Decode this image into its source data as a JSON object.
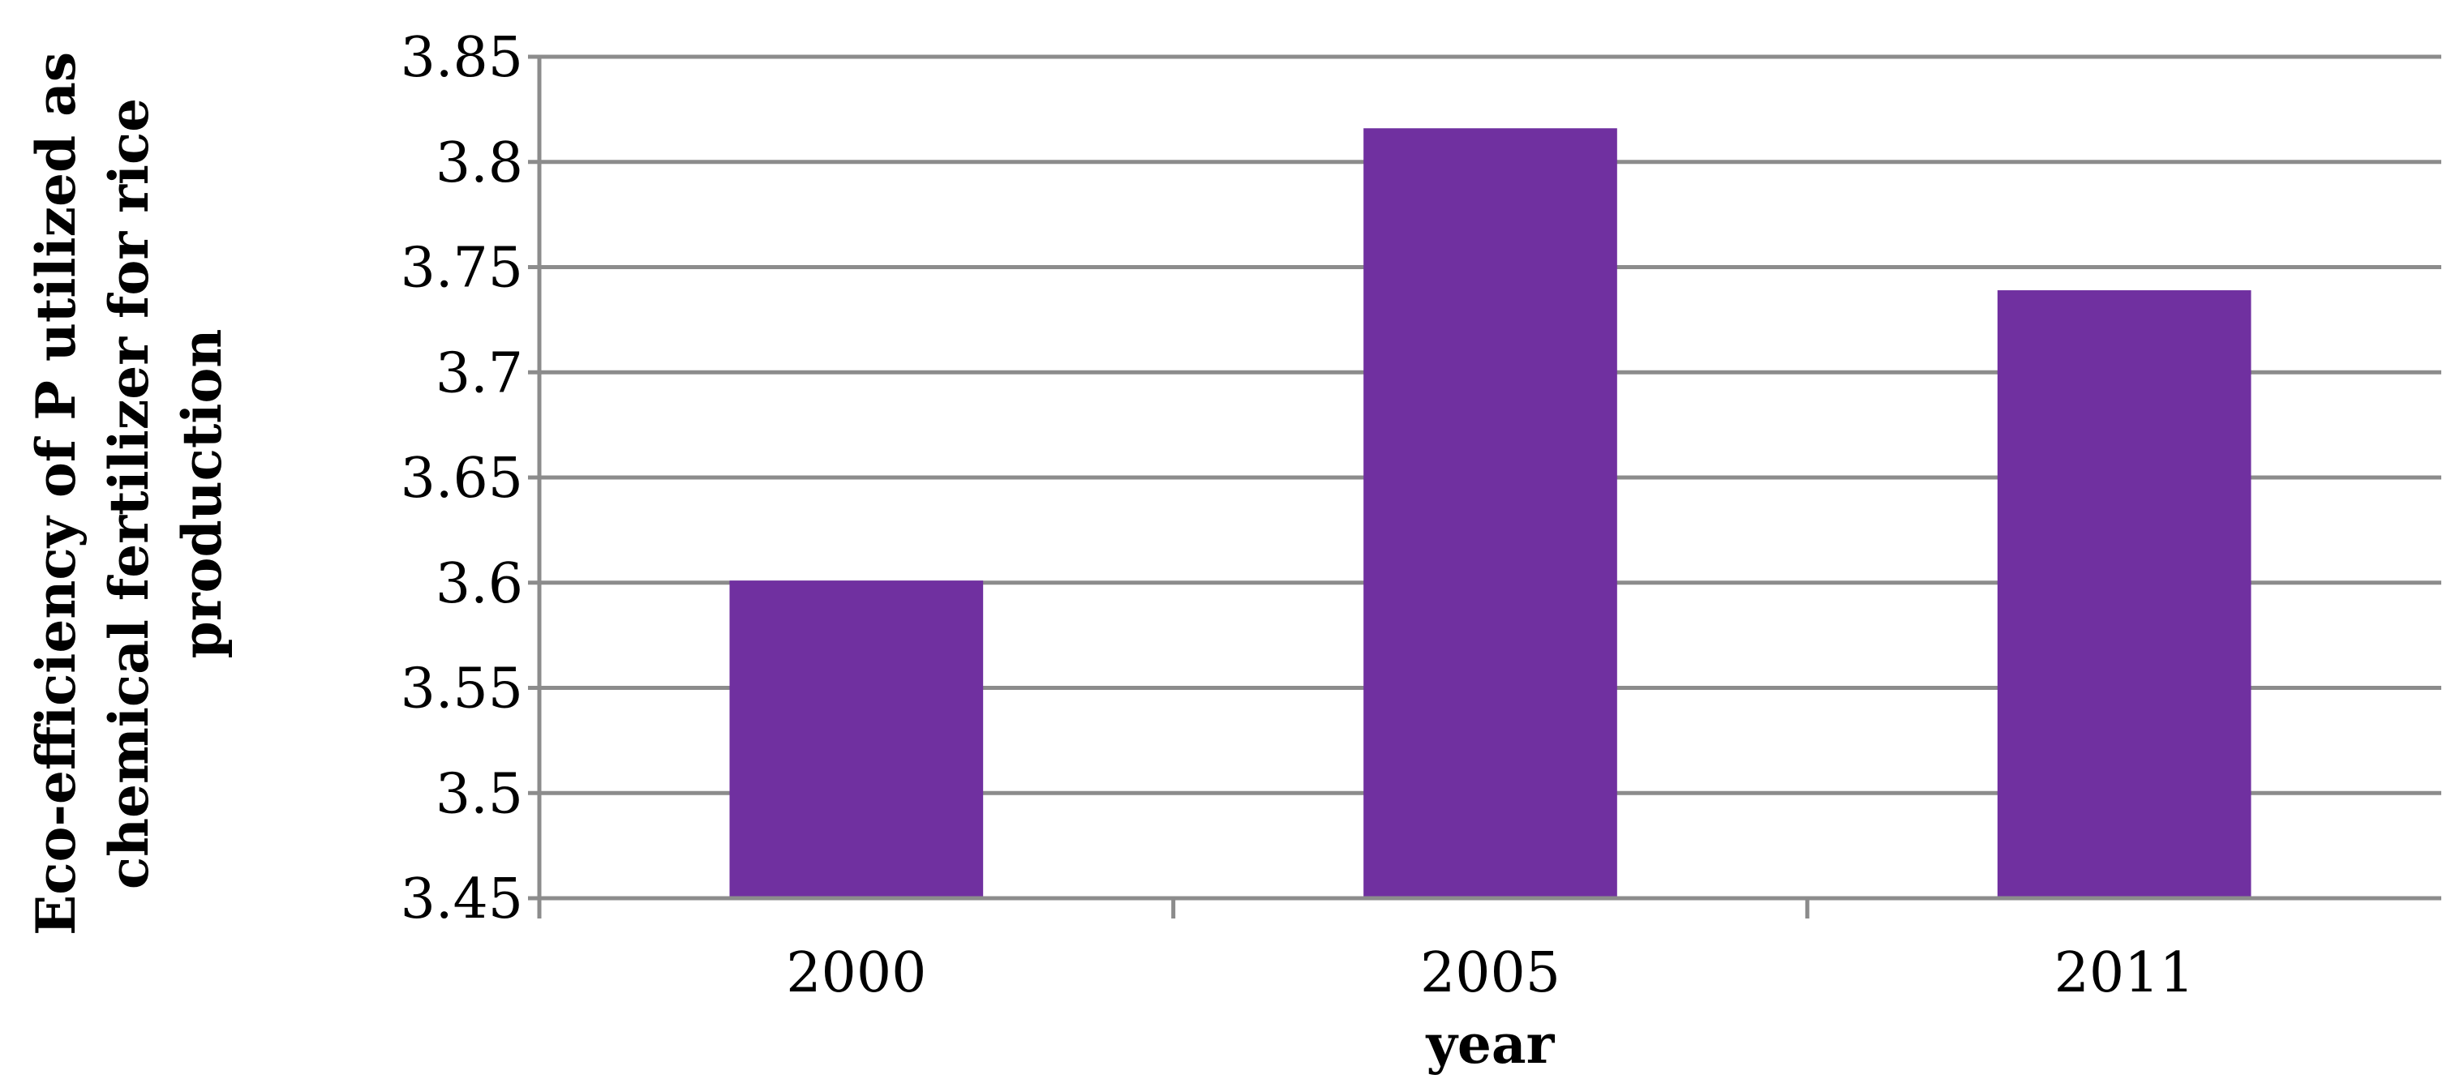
{
  "chart_data": {
    "type": "bar",
    "categories": [
      "2000",
      "2005",
      "2011"
    ],
    "values": [
      3.601,
      3.816,
      3.739
    ],
    "xlabel": "year",
    "ylabel_lines": [
      "Eco-efficiency of P utilized as",
      "chemical fertilizer for rice",
      "production"
    ],
    "ylim": [
      3.45,
      3.85
    ],
    "yticks": [
      "3.45",
      "3.5",
      "3.55",
      "3.6",
      "3.65",
      "3.7",
      "3.75",
      "3.8",
      "3.85"
    ],
    "grid": true,
    "legend": "none",
    "bar_color": "#7030A0",
    "grid_color": "#8C8C8C"
  }
}
